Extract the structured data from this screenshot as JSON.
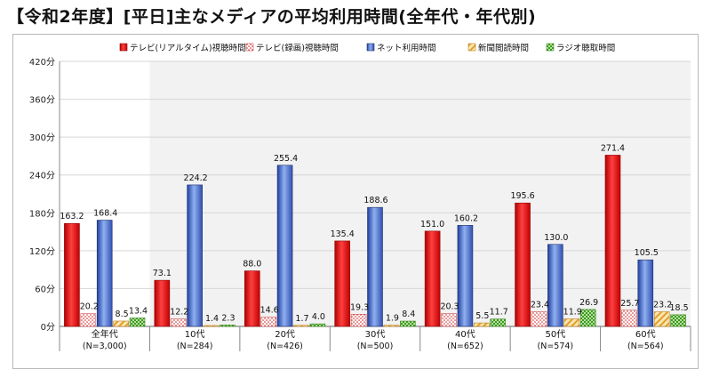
{
  "page_title": "【令和2年度】[平日]主なメディアの平均利用時間(全年代・年代別)",
  "chart_data": {
    "type": "bar",
    "title": "【令和2年度】[平日]主なメディアの平均利用時間(全年代・年代別)",
    "xlabel": "",
    "ylabel": "",
    "ylim": [
      0,
      420
    ],
    "yticks": [
      "0分",
      "60分",
      "120分",
      "180分",
      "240分",
      "300分",
      "360分",
      "420分"
    ],
    "legend_position": "top",
    "grid": true,
    "categories": [
      {
        "name": "全年代",
        "n": "(N=3,000)"
      },
      {
        "name": "10代",
        "n": "(N=284)"
      },
      {
        "name": "20代",
        "n": "(N=426)"
      },
      {
        "name": "30代",
        "n": "(N=500)"
      },
      {
        "name": "40代",
        "n": "(N=652)"
      },
      {
        "name": "50代",
        "n": "(N=574)"
      },
      {
        "name": "60代",
        "n": "(N=564)"
      }
    ],
    "series": [
      {
        "name": "テレビ(リアルタイム)視聴時間",
        "color": "#e02020",
        "pattern": "solid-red",
        "values": [
          163.2,
          73.1,
          88.0,
          135.4,
          151.0,
          195.6,
          271.4
        ]
      },
      {
        "name": "テレビ(録画)視聴時間",
        "color": "#e04040",
        "pattern": "dots",
        "values": [
          20.2,
          12.2,
          14.6,
          19.3,
          20.3,
          23.4,
          25.7
        ]
      },
      {
        "name": "ネット利用時間",
        "color": "#2f5fd0",
        "pattern": "solid-blue",
        "values": [
          168.4,
          224.2,
          255.4,
          188.6,
          160.2,
          130.0,
          105.5
        ]
      },
      {
        "name": "新聞閲読時間",
        "color": "#e0a030",
        "pattern": "hatch",
        "values": [
          8.5,
          1.4,
          1.7,
          1.9,
          5.5,
          11.9,
          23.2
        ]
      },
      {
        "name": "ラジオ聴取時間",
        "color": "#55b030",
        "pattern": "checker",
        "values": [
          13.4,
          2.3,
          4.0,
          8.4,
          11.7,
          26.9,
          18.5
        ]
      }
    ],
    "value_labels": [
      [
        "163.2",
        "20.2",
        "168.4",
        "8.5",
        "13.4"
      ],
      [
        "73.1",
        "12.2",
        "224.2",
        "1.4",
        "2.3"
      ],
      [
        "88.0",
        "14.6",
        "255.4",
        "1.7",
        "4.0"
      ],
      [
        "135.4",
        "19.3",
        "188.6",
        "1.9",
        "8.4"
      ],
      [
        "151.0",
        "20.3",
        "160.2",
        "5.5",
        "11.7"
      ],
      [
        "195.6",
        "23.4",
        "130.0",
        "11.9",
        "26.9"
      ],
      [
        "271.4",
        "25.7",
        "105.5",
        "23.2",
        "18.5"
      ]
    ]
  }
}
